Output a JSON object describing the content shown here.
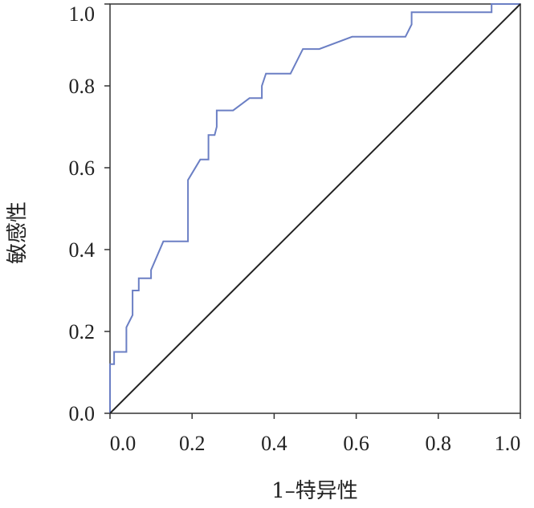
{
  "chart_data": {
    "type": "line",
    "xlabel": "1–特异性",
    "ylabel": "敏感性",
    "xlim": [
      0,
      1
    ],
    "ylim": [
      0,
      1
    ],
    "x_ticks": [
      "0.0",
      "0.2",
      "0.4",
      "0.6",
      "0.8",
      "1.0"
    ],
    "y_ticks": [
      "0.0",
      "0.2",
      "0.4",
      "0.6",
      "0.8",
      "1.0"
    ],
    "grid": false,
    "legend": "none",
    "series": [
      {
        "color": "#6b7fc4",
        "x": [
          0.0,
          0.0,
          0.01,
          0.01,
          0.04,
          0.04,
          0.055,
          0.055,
          0.07,
          0.07,
          0.1,
          0.1,
          0.13,
          0.19,
          0.19,
          0.22,
          0.24,
          0.24,
          0.255,
          0.26,
          0.26,
          0.3,
          0.34,
          0.37,
          0.37,
          0.38,
          0.44,
          0.47,
          0.51,
          0.59,
          0.72,
          0.735,
          0.735,
          0.93,
          0.93,
          1.0
        ],
        "y": [
          0.0,
          0.12,
          0.12,
          0.15,
          0.15,
          0.21,
          0.24,
          0.3,
          0.3,
          0.33,
          0.33,
          0.35,
          0.42,
          0.42,
          0.57,
          0.62,
          0.62,
          0.68,
          0.68,
          0.7,
          0.74,
          0.74,
          0.77,
          0.77,
          0.8,
          0.83,
          0.83,
          0.89,
          0.89,
          0.92,
          0.92,
          0.95,
          0.98,
          0.98,
          1.0,
          1.0
        ]
      },
      {
        "color": "#222222",
        "x": [
          0,
          1
        ],
        "y": [
          0,
          1
        ]
      }
    ]
  }
}
